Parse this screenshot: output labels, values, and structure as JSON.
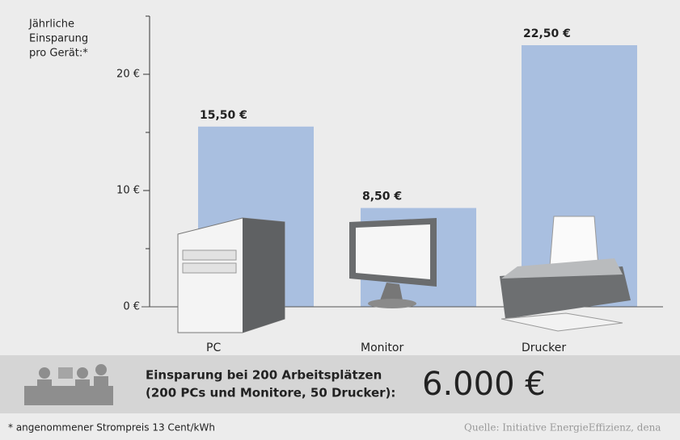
{
  "chart_data": {
    "type": "bar",
    "y_label_lines": [
      "Jährliche",
      "Einsparung",
      "pro Gerät:*"
    ],
    "categories": [
      "PC",
      "Monitor",
      "Drucker"
    ],
    "values": [
      15.5,
      8.5,
      22.5
    ],
    "value_labels": [
      "15,50 €",
      "8,50 €",
      "22,50 €"
    ],
    "color": "#a9bfe0",
    "ylim": [
      0,
      25
    ],
    "yticks": [
      {
        "value": 0,
        "label": "0 €"
      },
      {
        "value": 10,
        "label": "10 €"
      },
      {
        "value": 20,
        "label": "20 €"
      }
    ],
    "minor_yticks": [
      5,
      15,
      25
    ]
  },
  "summary": {
    "lines": [
      "Einsparung bei 200 Arbeitsplätzen",
      "(200 PCs und Monitore, 50 Drucker):"
    ],
    "total": "6.000 €"
  },
  "footer": {
    "note": "* angenommener Strompreis 13 Cent/kWh",
    "source": "Quelle: Initiative EnergieEffizienz, dena"
  }
}
